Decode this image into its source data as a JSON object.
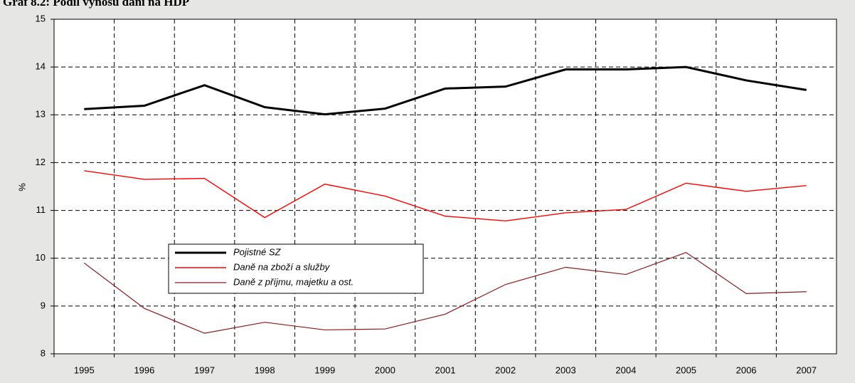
{
  "chart_data": {
    "type": "line",
    "title": "Graf 8.2: Podíl výnosů daní na HDP",
    "y_label": "%",
    "categories": [
      "1995",
      "1996",
      "1997",
      "1998",
      "1999",
      "2000",
      "2001",
      "2002",
      "2003",
      "2004",
      "2005",
      "2006",
      "2007"
    ],
    "series": [
      {
        "name": "Pojistné SZ",
        "color": "#000000",
        "values": [
          13.12,
          13.19,
          13.62,
          13.16,
          13.01,
          13.13,
          13.55,
          13.59,
          13.95,
          13.95,
          14.0,
          13.72,
          13.52
        ]
      },
      {
        "name": "Daně na zboží a služby",
        "color": "#ff0000",
        "values": [
          11.83,
          11.65,
          11.67,
          10.85,
          11.55,
          11.3,
          10.88,
          10.78,
          10.95,
          11.02,
          11.57,
          11.4,
          11.52
        ]
      },
      {
        "name": "Daně z příjmu, majetku a ost.",
        "color": "#8b1a1a",
        "values": [
          9.9,
          8.95,
          8.43,
          8.66,
          8.5,
          8.52,
          8.83,
          9.45,
          9.81,
          9.66,
          10.12,
          9.26,
          9.3
        ]
      }
    ],
    "ylim": [
      8,
      15
    ],
    "yticks": [
      8,
      9,
      10,
      11,
      12,
      13,
      14,
      15
    ],
    "grid": true
  }
}
